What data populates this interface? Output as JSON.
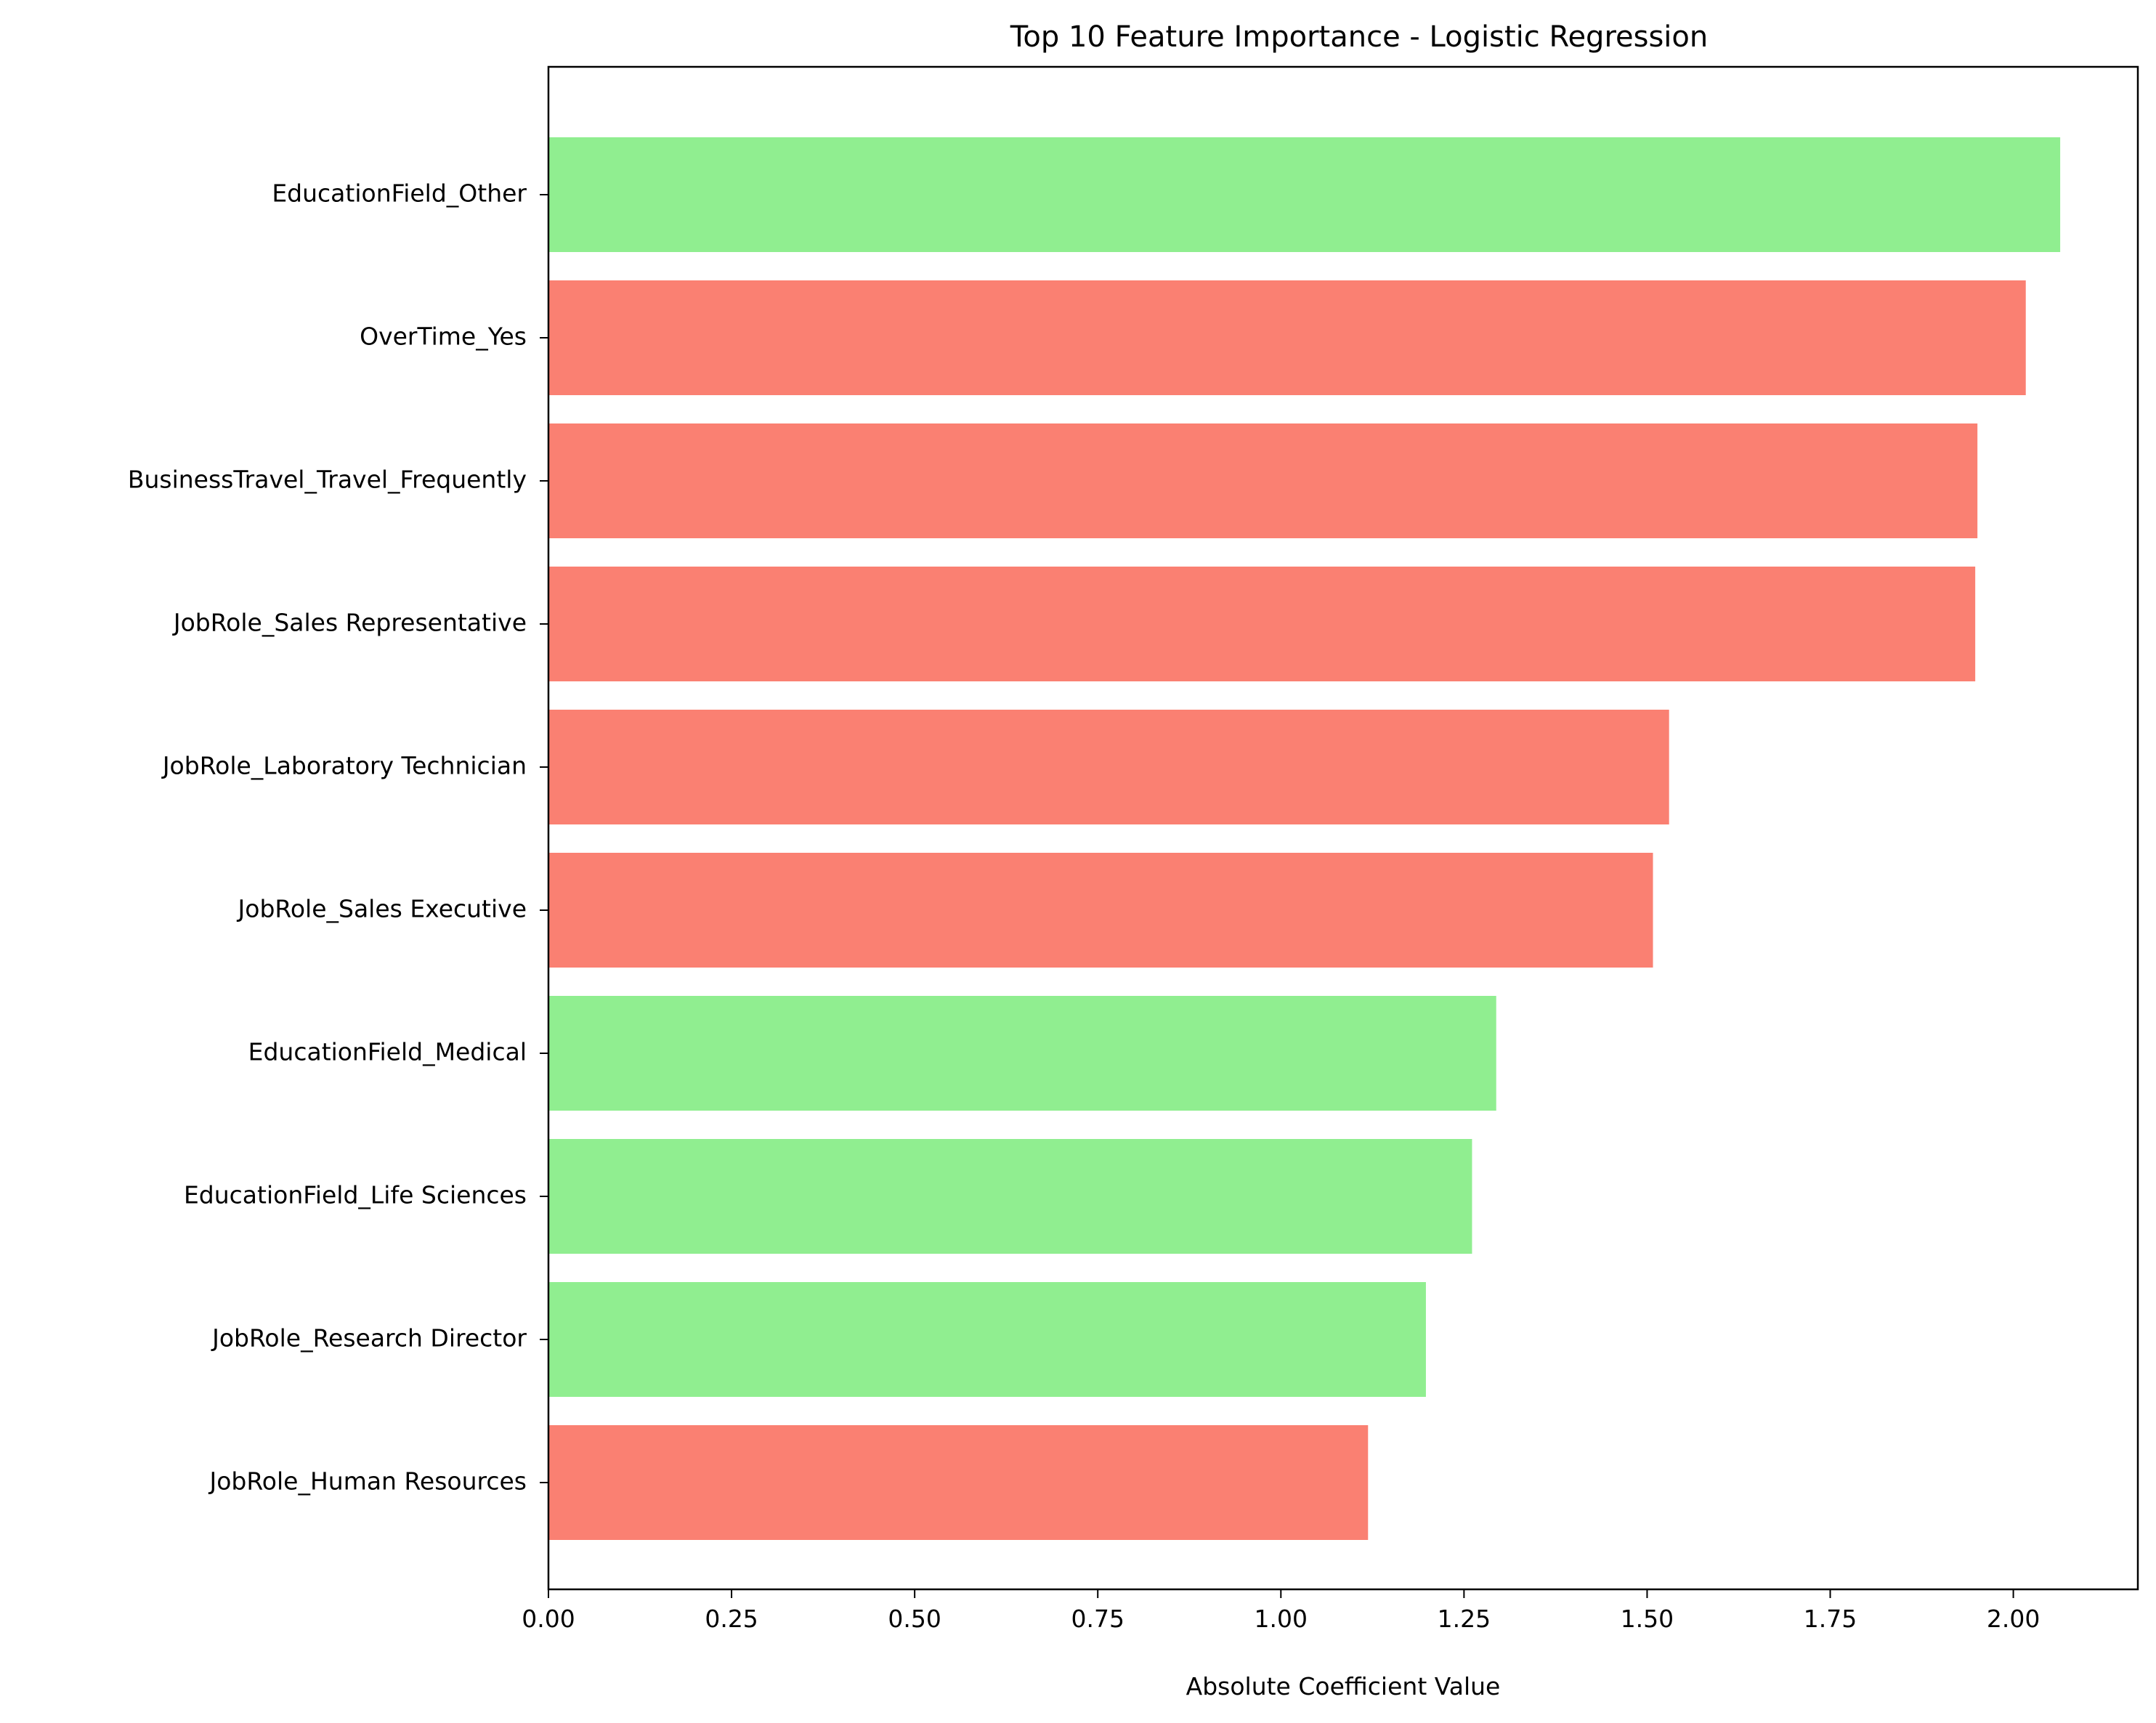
{
  "chart_data": {
    "type": "bar",
    "orientation": "horizontal",
    "title": "Top 10 Feature Importance - Logistic Regression",
    "xlabel": "Absolute Coefficient Value",
    "ylabel": "",
    "xlim": [
      0,
      2.17
    ],
    "xticks": [
      0.0,
      0.25,
      0.5,
      0.75,
      1.0,
      1.25,
      1.5,
      1.75,
      2.0
    ],
    "xtick_labels": [
      "0.00",
      "0.25",
      "0.50",
      "0.75",
      "1.00",
      "1.25",
      "1.50",
      "1.75",
      "2.00"
    ],
    "grid": false,
    "categories": [
      "EducationField_Other",
      "OverTime_Yes",
      "BusinessTravel_Travel_Frequently",
      "JobRole_Sales Representative",
      "JobRole_Laboratory Technician",
      "JobRole_Sales Executive",
      "EducationField_Medical",
      "EducationField_Life Sciences",
      "JobRole_Research Director",
      "JobRole_Human Resources"
    ],
    "values": [
      2.064,
      2.017,
      1.951,
      1.948,
      1.53,
      1.508,
      1.294,
      1.261,
      1.198,
      1.119
    ],
    "colors": [
      "#90ee90",
      "#fa8072",
      "#fa8072",
      "#fa8072",
      "#fa8072",
      "#fa8072",
      "#90ee90",
      "#90ee90",
      "#90ee90",
      "#fa8072"
    ]
  }
}
